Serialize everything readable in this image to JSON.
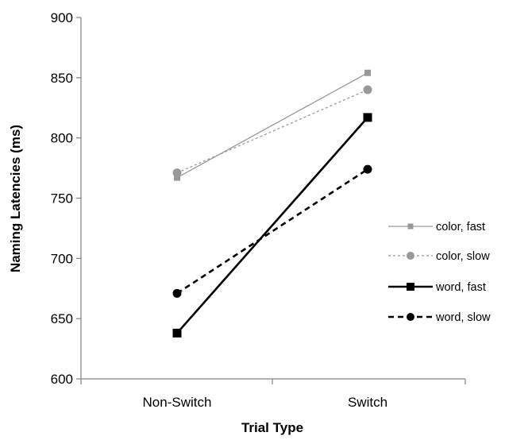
{
  "chart_data": {
    "type": "line",
    "title": "",
    "xlabel": "Trial Type",
    "ylabel": "Naming Latencies (ms)",
    "categories": [
      "Non-Switch",
      "Switch"
    ],
    "ylim": [
      600,
      900
    ],
    "yticks": [
      600,
      650,
      700,
      750,
      800,
      850,
      900
    ],
    "grid": false,
    "legend_position": "right",
    "series": [
      {
        "name": "color, fast",
        "values": [
          767,
          854
        ],
        "color": "#999999",
        "line_style": "solid",
        "marker": "square",
        "weight": "thin"
      },
      {
        "name": "color, slow",
        "values": [
          771,
          840
        ],
        "color": "#999999",
        "line_style": "dotted",
        "marker": "circle",
        "weight": "thin"
      },
      {
        "name": "word, fast",
        "values": [
          638,
          817
        ],
        "color": "#000000",
        "line_style": "solid",
        "marker": "square",
        "weight": "thick"
      },
      {
        "name": "word, slow",
        "values": [
          671,
          774
        ],
        "color": "#000000",
        "line_style": "dashed",
        "marker": "circle",
        "weight": "thick"
      }
    ]
  }
}
